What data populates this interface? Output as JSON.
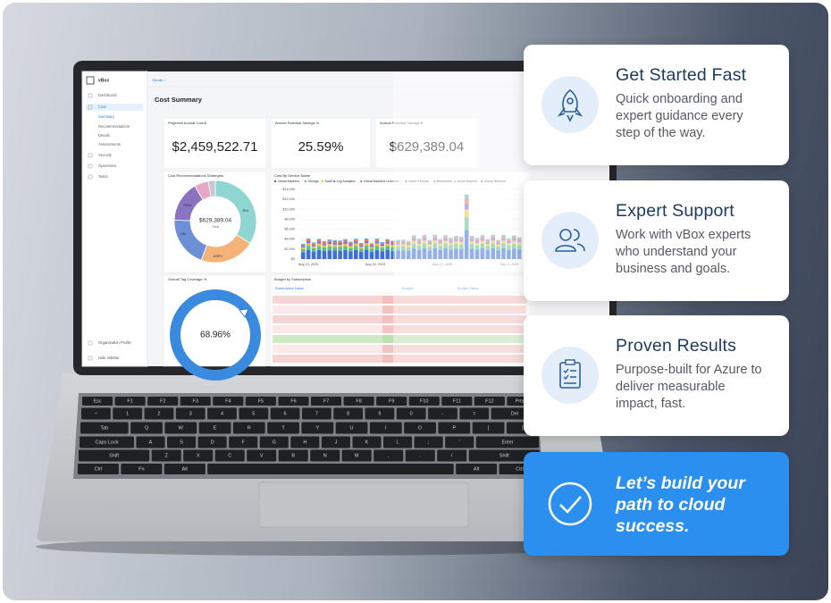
{
  "dashboard": {
    "brand": "vBox",
    "breadcrumb": "Vikode >",
    "nav": [
      "Dashboard",
      "Cost",
      "Summary",
      "Recommendations",
      "Details",
      "Assessments",
      "Security",
      "Operations",
      "Tasks"
    ],
    "footer_nav": [
      "Organization Profile",
      "Hide sidebar"
    ],
    "title": "Cost Summary",
    "kpis": [
      {
        "label": "Projected Annual Cost $",
        "value": "$2,459,522.71"
      },
      {
        "label": "Annual Potential Savings %",
        "value": "25.59%"
      },
      {
        "label": "Annual Potential Savings $",
        "value": "$629,389.04"
      }
    ],
    "strategies": {
      "title": "Cost Recommendations Strategies",
      "total": "$629,389.04",
      "total_label": "Total",
      "segments": [
        "RIU",
        "ASPC",
        "VM",
        "Other"
      ]
    },
    "service": {
      "title": "Cost By Service Name",
      "legend": [
        "Virtual Machine",
        "Storage",
        "SaaS",
        "Log Analytics",
        "Virtual Machine Licenses",
        "Azure Firewall",
        "Bandwidth",
        "Azure Bastion",
        "Virtual Network"
      ],
      "y_labels": [
        "$14,000",
        "$12,000",
        "$10,000",
        "$8,000",
        "$6,000",
        "$4,000",
        "$2,000",
        "$0"
      ],
      "x_labels": [
        "Aug 13, 2025",
        "Aug 20, 2025",
        "Aug 27, 2025",
        "Sep 3, 2025"
      ]
    },
    "tag": {
      "title": "Overall Tag Coverage %",
      "value": "68.96%"
    },
    "budget": {
      "title": "Budget by Subscription",
      "columns": [
        "Subscription Name",
        "Budget",
        "Budget Status"
      ]
    }
  },
  "keyboard": {
    "rows": [
      [
        "Esc",
        "F1",
        "F2",
        "F3",
        "F4",
        "F5",
        "F6",
        "F7",
        "F8",
        "F9",
        "F10",
        "F11",
        "F12",
        "Prtscn"
      ],
      [
        "~",
        "1",
        "2",
        "3",
        "4",
        "5",
        "6",
        "7",
        "8",
        "9",
        "0",
        "-",
        "=",
        "Del"
      ],
      [
        "Tab",
        "Q",
        "W",
        "E",
        "R",
        "T",
        "Y",
        "U",
        "I",
        "O",
        "P",
        "[",
        "]"
      ],
      [
        "Caps Lock",
        "A",
        "S",
        "D",
        "F",
        "G",
        "H",
        "J",
        "K",
        "L",
        ";",
        "'",
        "Enter"
      ],
      [
        "Shift",
        "Z",
        "X",
        "C",
        "V",
        "B",
        "N",
        "M",
        ",",
        ".",
        "/",
        "Shift"
      ],
      [
        "Ctrl",
        "Fn",
        "Alt",
        "",
        "Alt",
        "Ctrl"
      ]
    ]
  },
  "cards": [
    {
      "title": "Get Started Fast",
      "body": "Quick onboarding and expert guidance every step of the way."
    },
    {
      "title": "Expert Support",
      "body": "Work with vBox experts who understand your business and goals."
    },
    {
      "title": "Proven Results",
      "body": "Purpose-built for Azure to deliver measurable impact, fast."
    }
  ],
  "cta": "Let’s build your path to cloud success."
}
